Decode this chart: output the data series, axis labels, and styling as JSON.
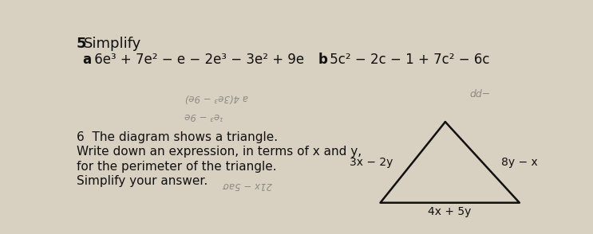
{
  "title_num": "5",
  "title_word": "Simplify",
  "part_a_label": "a",
  "part_a_expr": " 6e³ + 7e² − e − 2e³ − 3e² + 9e",
  "part_b_label": "b",
  "part_b_expr": " 5c² − 2c − 1 + 7c² − 6c",
  "q6_line1": "6  The diagram shows a triangle.",
  "q6_line2": "Write down an expression, in terms of x and y,",
  "q6_line3": "for the perimeter of the triangle.",
  "q6_line4": "Simplify your answer.",
  "triangle_left_label": "3x − 2y",
  "triangle_right_label": "8y − x",
  "triangle_bottom_label": "4x + 5y",
  "hw_a_line1": "a 4(3e³ − 9e)",
  "hw_a_line2": "¹e³ − 9e",
  "hw_b": "dd−",
  "hw_q6": "21x − 5aσ",
  "bg_color": "#d8d0c0",
  "text_color": "#111111",
  "hw_color": "#666666"
}
